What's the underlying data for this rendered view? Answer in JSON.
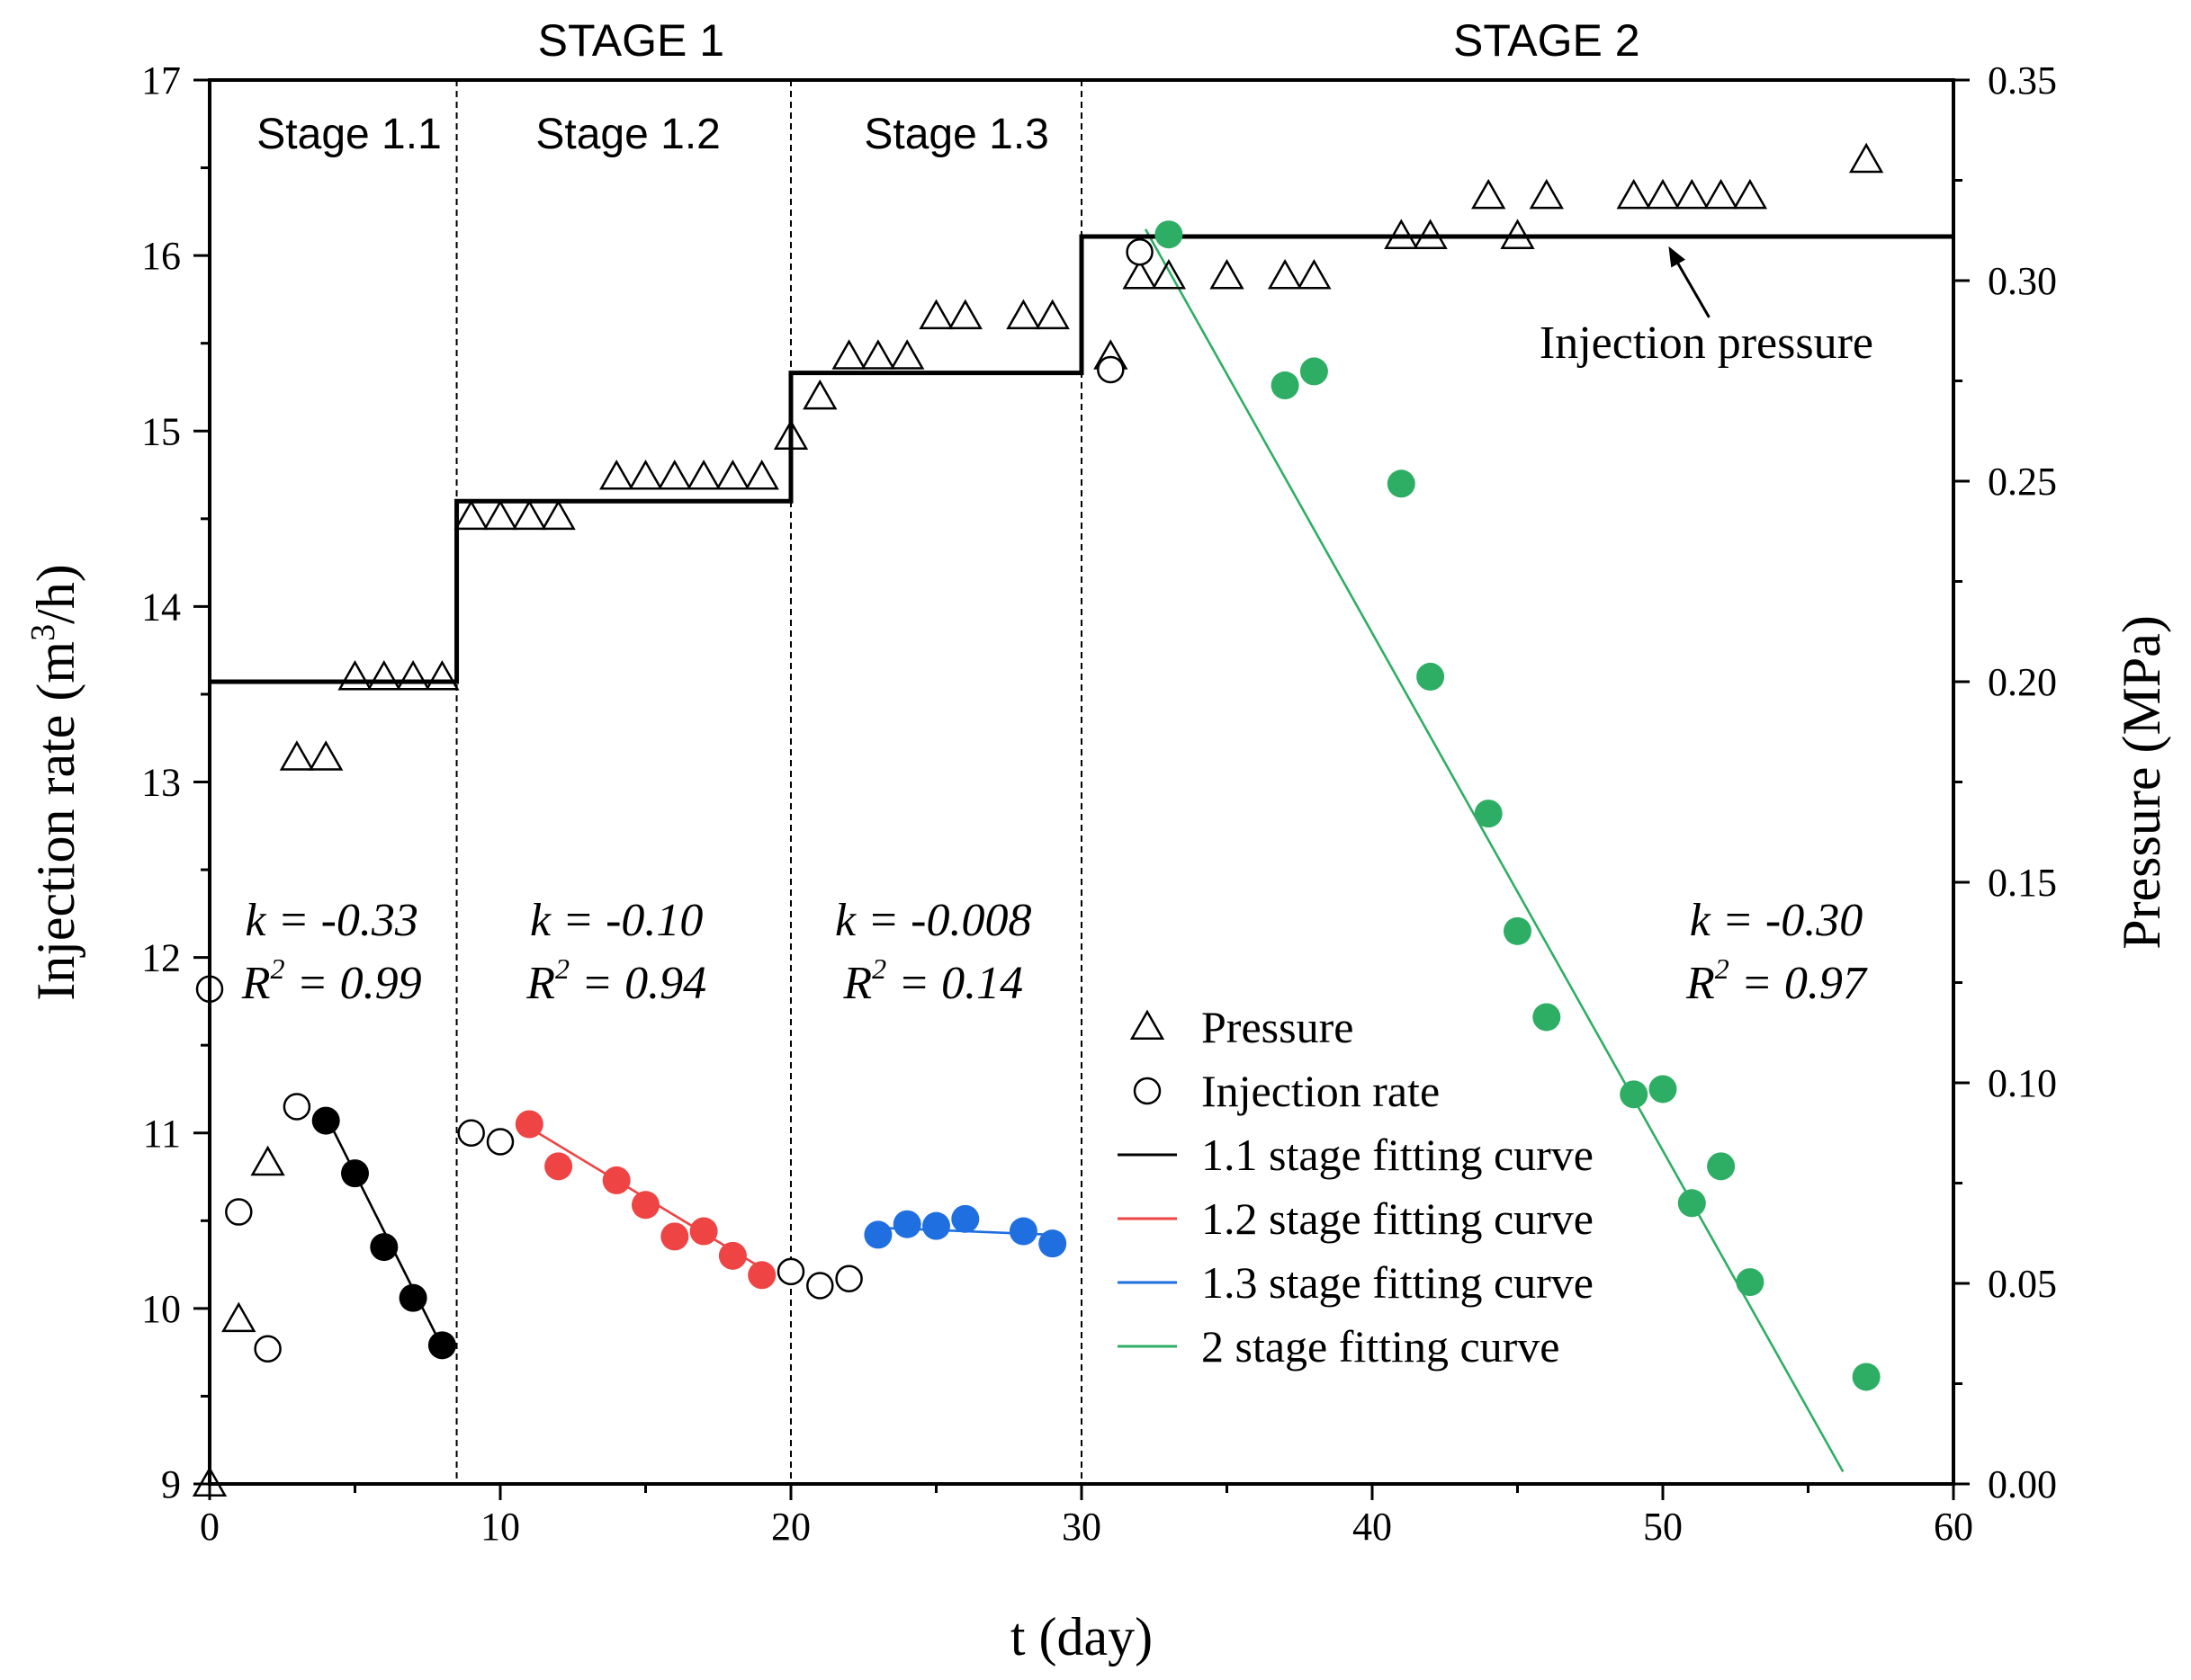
{
  "chart_data": {
    "type": "scatter",
    "xlabel": "t (day)",
    "ylabel_left": "Injection rate (m3/h)",
    "ylabel_left_parts": [
      "Injection rate (m",
      "3",
      "/h)"
    ],
    "ylabel_right": "Pressure (MPa)",
    "xlim": [
      0,
      60
    ],
    "ylim_left": [
      9,
      17
    ],
    "ylim_right": [
      0,
      0.35
    ],
    "x_ticks": [
      "0",
      "10",
      "20",
      "30",
      "40",
      "50",
      "60"
    ],
    "y_left_ticks": [
      "9",
      "10",
      "11",
      "12",
      "13",
      "14",
      "15",
      "16",
      "17"
    ],
    "y_right_ticks": [
      "0.00",
      "0.05",
      "0.10",
      "0.15",
      "0.20",
      "0.25",
      "0.30",
      "0.35"
    ],
    "stage_titles": [
      {
        "label": "STAGE 1",
        "x": 14.5
      },
      {
        "label": "STAGE 2",
        "x": 46
      }
    ],
    "substage_labels": [
      {
        "label": "Stage 1.1",
        "x": 4.8
      },
      {
        "label": "Stage 1.2",
        "x": 14.4
      },
      {
        "label": "Stage 1.3",
        "x": 25.7
      }
    ],
    "stage_boundaries": [
      8.5,
      20,
      30
    ],
    "fit_annotations": [
      {
        "k": "k = -0.33",
        "r2_value": " = 0.99",
        "x": 4.2
      },
      {
        "k": "k = -0.10",
        "r2_value": " = 0.94",
        "x": 14.0
      },
      {
        "k": "k = -0.008",
        "r2_value": " = 0.14",
        "x": 24.9
      },
      {
        "k": "k = -0.30",
        "r2_value": " = 0.97",
        "x": 53.9
      }
    ],
    "r2_label": "R",
    "r2_superscript": "2",
    "pressure_step_line": {
      "points": [
        [
          0,
          0.2
        ],
        [
          8.5,
          0.2
        ],
        [
          8.5,
          0.245
        ],
        [
          20,
          0.245
        ],
        [
          20,
          0.277
        ],
        [
          30,
          0.277
        ],
        [
          30,
          0.311
        ],
        [
          60,
          0.311
        ]
      ],
      "annotation": "Injection pressure",
      "annotation_xy": [
        51.5,
        0.283
      ],
      "arrow_to": [
        50.2,
        0.309
      ]
    },
    "series": [
      {
        "name": "Pressure",
        "axis": "right",
        "marker": "triangle-open",
        "x": [
          0,
          1,
          2,
          3,
          4,
          5,
          6,
          7,
          8,
          9,
          10,
          11,
          12,
          14,
          15,
          16,
          17,
          18,
          19,
          20,
          21,
          22,
          23,
          24,
          25,
          26,
          28,
          29,
          31,
          32,
          33,
          35,
          37,
          38,
          41,
          42,
          44,
          45,
          46,
          49,
          50,
          51,
          52,
          53,
          57
        ],
        "y": [
          0.0,
          0.041,
          0.08,
          0.181,
          0.181,
          0.201,
          0.201,
          0.201,
          0.201,
          0.241,
          0.241,
          0.241,
          0.241,
          0.251,
          0.251,
          0.251,
          0.251,
          0.251,
          0.251,
          0.261,
          0.271,
          0.281,
          0.281,
          0.281,
          0.291,
          0.291,
          0.291,
          0.291,
          0.281,
          0.301,
          0.301,
          0.301,
          0.301,
          0.301,
          0.311,
          0.311,
          0.321,
          0.311,
          0.321,
          0.321,
          0.321,
          0.321,
          0.321,
          0.321,
          0.33
        ]
      },
      {
        "name": "Injection rate",
        "axis": "left",
        "marker": "circle-open",
        "x": [
          0,
          1,
          2,
          3,
          9,
          10,
          20,
          21,
          22,
          31,
          32
        ],
        "y": [
          11.82,
          10.55,
          9.77,
          11.15,
          11.0,
          10.95,
          10.21,
          10.13,
          10.17,
          15.35,
          16.02
        ]
      },
      {
        "name": "1.1 stage fitting curve",
        "axis": "left",
        "marker": "circle-filled",
        "color": "#000000",
        "x": [
          4,
          5,
          6,
          7,
          8
        ],
        "y": [
          11.07,
          10.77,
          10.35,
          10.06,
          9.79
        ],
        "fit": [
          [
            4,
            11.1
          ],
          [
            8,
            9.78
          ]
        ]
      },
      {
        "name": "1.2 stage fitting curve",
        "axis": "left",
        "marker": "circle-filled",
        "color": "#EE4444",
        "x": [
          11,
          12,
          14,
          15,
          16,
          17,
          18,
          19
        ],
        "y": [
          11.05,
          10.81,
          10.73,
          10.59,
          10.41,
          10.44,
          10.3,
          10.19
        ],
        "fit": [
          [
            11,
            11.03
          ],
          [
            19,
            10.23
          ]
        ]
      },
      {
        "name": "1.3 stage fitting curve",
        "axis": "left",
        "marker": "circle-filled",
        "color": "#1F6FE0",
        "x": [
          23,
          24,
          25,
          26,
          28,
          29
        ],
        "y": [
          10.42,
          10.48,
          10.47,
          10.51,
          10.44,
          10.37
        ],
        "fit": [
          [
            23,
            10.46
          ],
          [
            29,
            10.42
          ]
        ]
      },
      {
        "name": "2 stage fitting curve",
        "axis": "left",
        "marker": "circle-filled",
        "color": "#2EAE64",
        "x": [
          33,
          37,
          38,
          41,
          42,
          44,
          45,
          46,
          49,
          50,
          51,
          52,
          53,
          57
        ],
        "y": [
          16.12,
          15.26,
          15.34,
          14.7,
          13.6,
          12.82,
          12.15,
          11.66,
          11.22,
          11.25,
          10.6,
          10.81,
          10.15,
          9.61
        ],
        "fit": [
          [
            32.2,
            16.15
          ],
          [
            56.2,
            9.07
          ]
        ]
      }
    ],
    "legend": [
      "Pressure",
      "Injection rate",
      "1.1 stage fitting curve",
      "1.2 stage fitting curve",
      "1.3 stage fitting curve",
      "2 stage fitting curve"
    ],
    "legend_position": "lower-center-right"
  }
}
